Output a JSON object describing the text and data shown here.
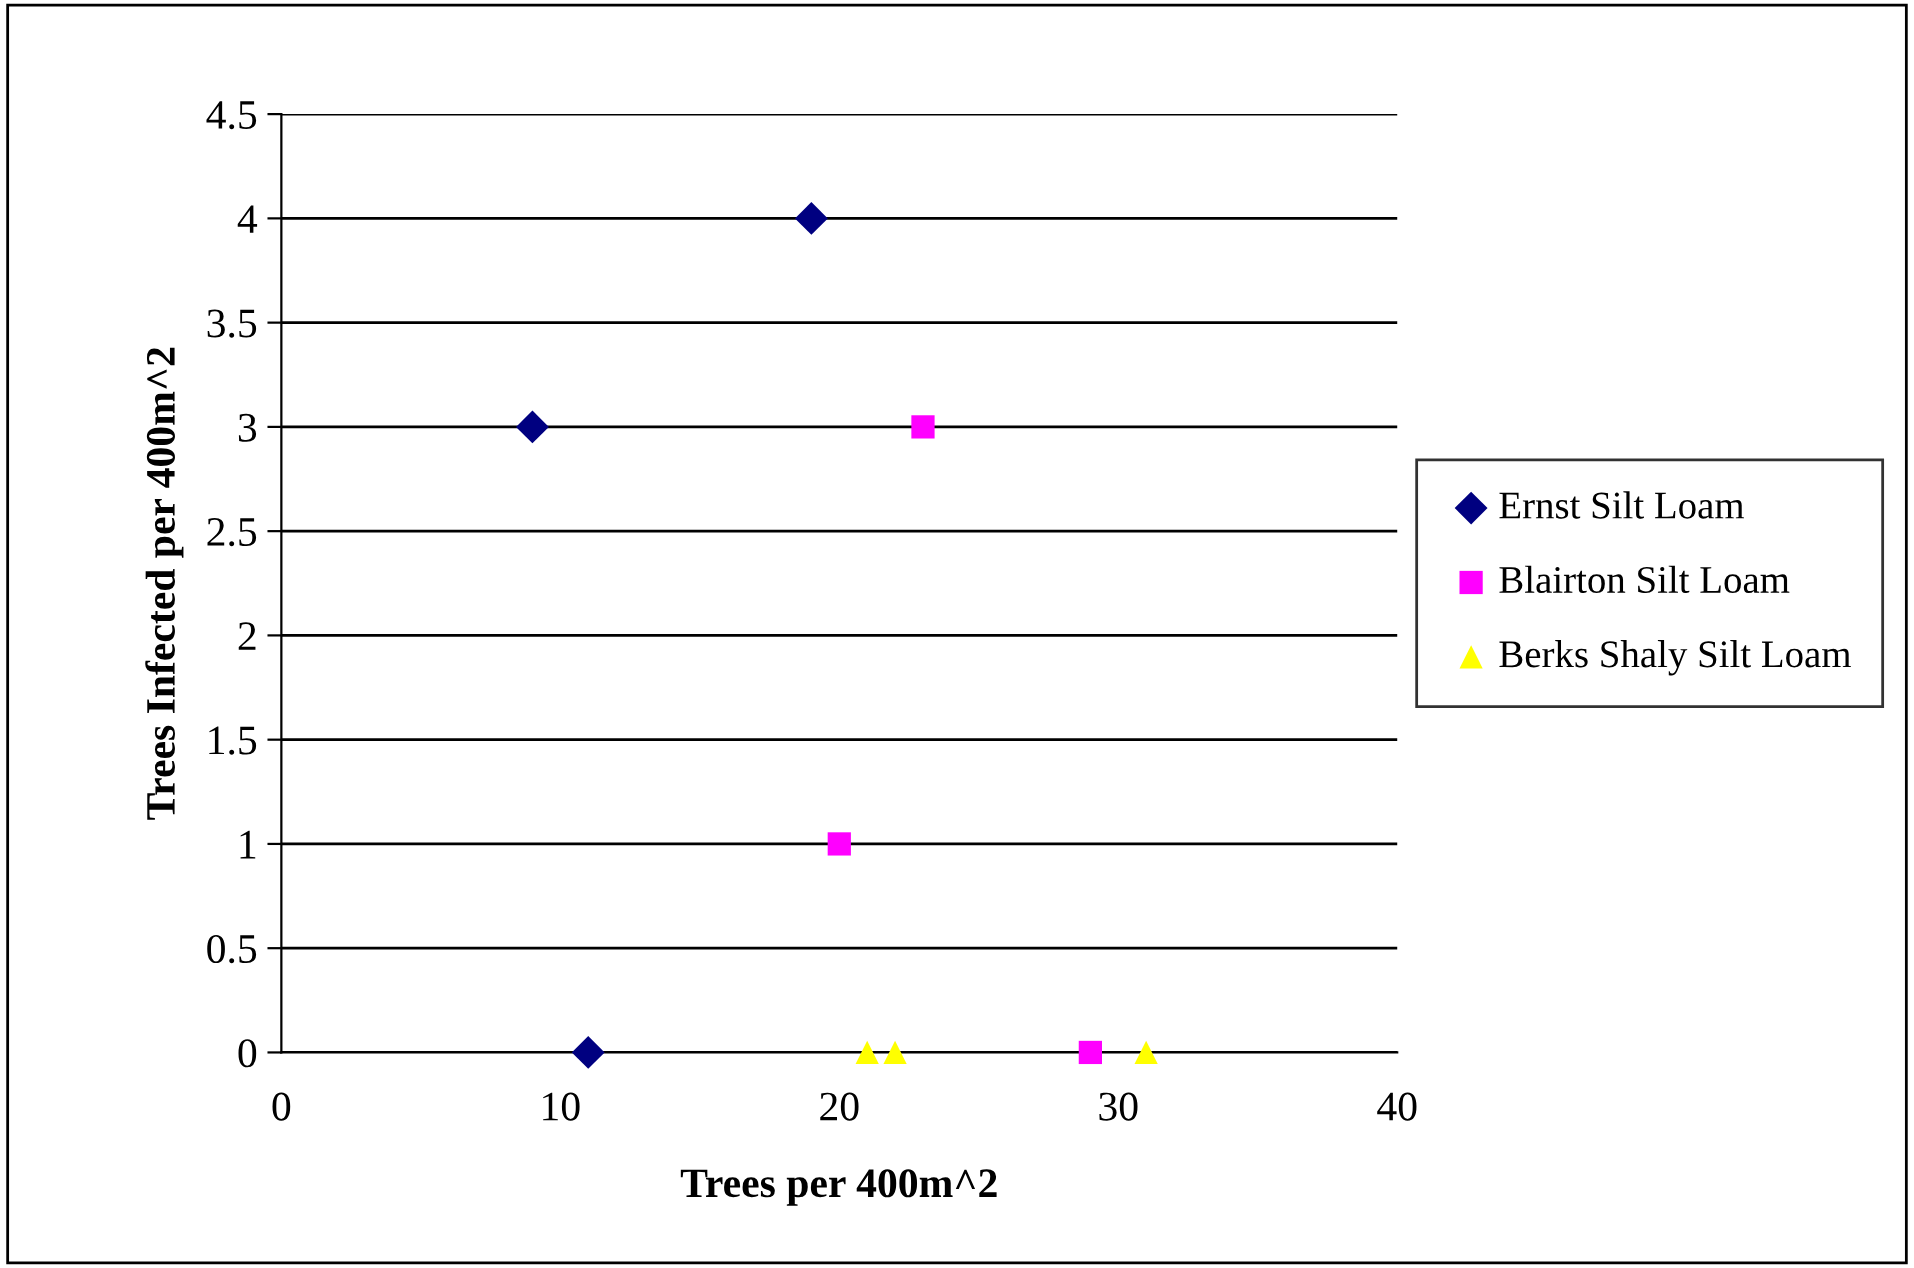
{
  "chart_data": {
    "type": "scatter",
    "xlabel": "Trees per 400m^2",
    "ylabel": "Trees Infected per 400m^2",
    "xlim": [
      0,
      40
    ],
    "xticks": [
      0,
      10,
      20,
      30,
      40
    ],
    "ylim": [
      0,
      4.5
    ],
    "yticks": [
      0,
      0.5,
      1,
      1.5,
      2,
      2.5,
      3,
      3.5,
      4,
      4.5
    ],
    "grid": "y",
    "legend": "right",
    "series": [
      {
        "name": "Ernst Silt Loam",
        "color": "#000080",
        "marker": "diamond",
        "x": [
          9,
          19,
          11
        ],
        "values": [
          3,
          4,
          0
        ]
      },
      {
        "name": "Blairton Silt Loam",
        "color": "#ff00ff",
        "marker": "square",
        "x": [
          23,
          20,
          29
        ],
        "values": [
          3,
          1,
          0
        ]
      },
      {
        "name": "Berks Shaly Silt Loam",
        "color": "#ffff00",
        "marker": "triangle",
        "x": [
          21,
          22,
          31
        ],
        "values": [
          0,
          0,
          0
        ]
      }
    ]
  }
}
